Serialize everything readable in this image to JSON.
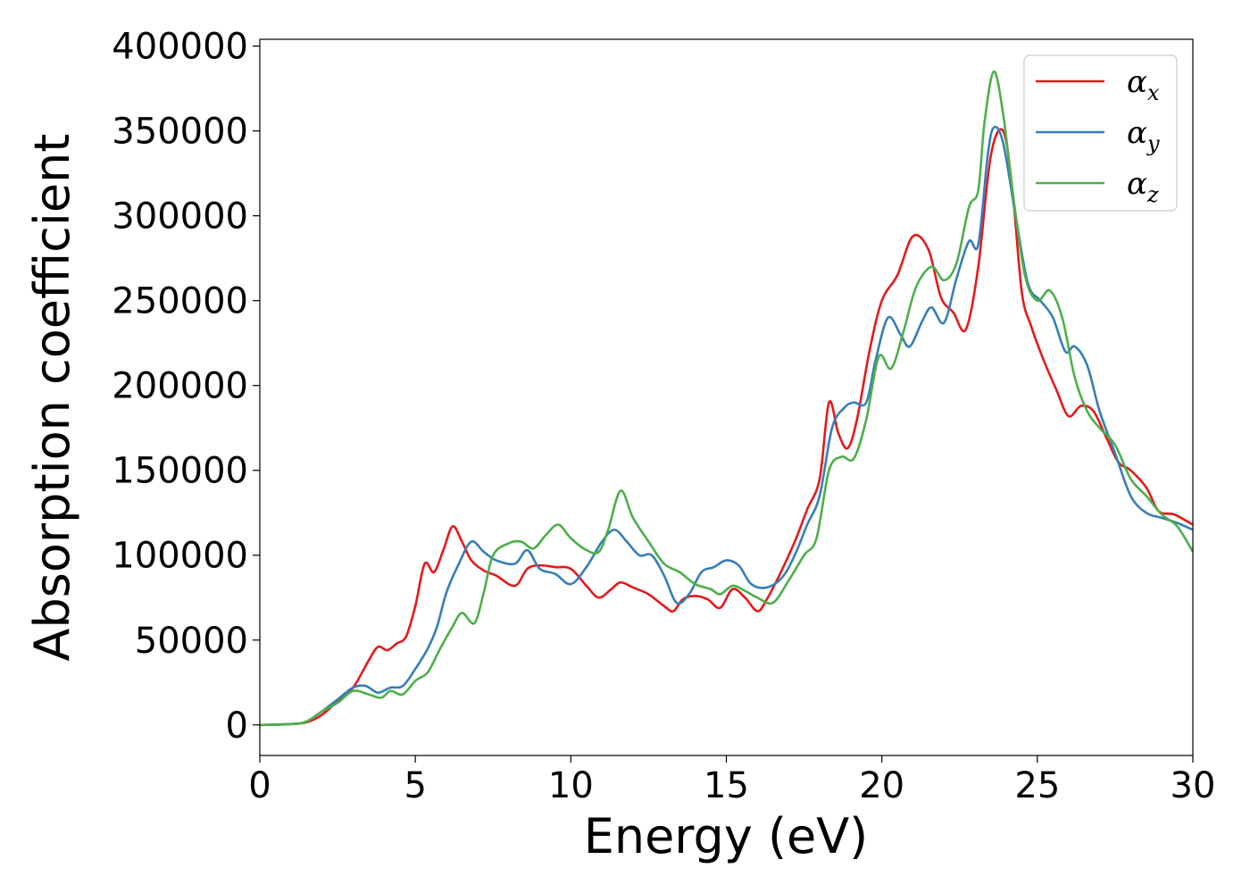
{
  "chart_data": {
    "type": "line",
    "title": "",
    "xlabel": "Energy (eV)",
    "ylabel": "Absorption coefficient",
    "xlim": [
      0,
      30
    ],
    "ylim": [
      -18000,
      404000
    ],
    "xticks": [
      0,
      5,
      10,
      15,
      20,
      25,
      30
    ],
    "xtick_labels": [
      "0",
      "5",
      "10",
      "15",
      "20",
      "25",
      "30"
    ],
    "yticks": [
      0,
      50000,
      100000,
      150000,
      200000,
      250000,
      300000,
      350000,
      400000
    ],
    "ytick_labels": [
      "0",
      "50000",
      "100000",
      "150000",
      "200000",
      "250000",
      "300000",
      "350000",
      "400000"
    ],
    "grid": false,
    "legend_position": "top-right",
    "series": [
      {
        "name": "α",
        "subscript": "x",
        "color": "#e41a1c",
        "points": [
          [
            0,
            0
          ],
          [
            1,
            500
          ],
          [
            1.5,
            1500
          ],
          [
            2,
            6000
          ],
          [
            2.5,
            14000
          ],
          [
            3,
            22000
          ],
          [
            3.5,
            38000
          ],
          [
            3.8,
            46000
          ],
          [
            4.1,
            44000
          ],
          [
            4.4,
            48000
          ],
          [
            4.7,
            52000
          ],
          [
            5.0,
            70000
          ],
          [
            5.3,
            95000
          ],
          [
            5.6,
            90000
          ],
          [
            5.9,
            103000
          ],
          [
            6.2,
            117000
          ],
          [
            6.5,
            108000
          ],
          [
            6.8,
            97000
          ],
          [
            7.2,
            91000
          ],
          [
            7.6,
            88000
          ],
          [
            8.2,
            82000
          ],
          [
            8.6,
            92000
          ],
          [
            9,
            94000
          ],
          [
            9.5,
            93000
          ],
          [
            10,
            92000
          ],
          [
            10.5,
            82000
          ],
          [
            10.9,
            75000
          ],
          [
            11.3,
            80000
          ],
          [
            11.6,
            84000
          ],
          [
            12,
            81000
          ],
          [
            12.5,
            77000
          ],
          [
            13,
            70000
          ],
          [
            13.3,
            67000
          ],
          [
            13.6,
            74000
          ],
          [
            14,
            76000
          ],
          [
            14.4,
            74000
          ],
          [
            14.8,
            69000
          ],
          [
            15.2,
            80000
          ],
          [
            15.6,
            75000
          ],
          [
            16,
            67000
          ],
          [
            16.3,
            74000
          ],
          [
            16.7,
            88000
          ],
          [
            17.2,
            108000
          ],
          [
            17.6,
            127000
          ],
          [
            18,
            145000
          ],
          [
            18.3,
            190000
          ],
          [
            18.6,
            172000
          ],
          [
            18.9,
            163000
          ],
          [
            19.2,
            180000
          ],
          [
            19.6,
            220000
          ],
          [
            20,
            250000
          ],
          [
            20.5,
            265000
          ],
          [
            21,
            288000
          ],
          [
            21.5,
            280000
          ],
          [
            21.9,
            252000
          ],
          [
            22.3,
            243000
          ],
          [
            22.7,
            233000
          ],
          [
            23.1,
            270000
          ],
          [
            23.5,
            335000
          ],
          [
            23.9,
            350000
          ],
          [
            24.2,
            315000
          ],
          [
            24.5,
            255000
          ],
          [
            24.8,
            235000
          ],
          [
            25.2,
            215000
          ],
          [
            25.6,
            198000
          ],
          [
            26,
            182000
          ],
          [
            26.4,
            188000
          ],
          [
            26.8,
            185000
          ],
          [
            27.2,
            170000
          ],
          [
            27.6,
            155000
          ],
          [
            28,
            150000
          ],
          [
            28.5,
            140000
          ],
          [
            28.9,
            126000
          ],
          [
            29.4,
            124000
          ],
          [
            30,
            118000
          ]
        ]
      },
      {
        "name": "α",
        "subscript": "y",
        "color": "#377eb8",
        "points": [
          [
            0,
            0
          ],
          [
            1,
            500
          ],
          [
            1.5,
            2000
          ],
          [
            2,
            8000
          ],
          [
            2.5,
            15000
          ],
          [
            3,
            22000
          ],
          [
            3.4,
            23000
          ],
          [
            3.8,
            19000
          ],
          [
            4.2,
            22000
          ],
          [
            4.6,
            23000
          ],
          [
            5.0,
            33000
          ],
          [
            5.4,
            45000
          ],
          [
            5.7,
            58000
          ],
          [
            6.0,
            78000
          ],
          [
            6.4,
            95000
          ],
          [
            6.8,
            108000
          ],
          [
            7.2,
            102000
          ],
          [
            7.6,
            97000
          ],
          [
            8.2,
            95000
          ],
          [
            8.6,
            103000
          ],
          [
            9,
            92000
          ],
          [
            9.5,
            89000
          ],
          [
            10,
            83000
          ],
          [
            10.5,
            93000
          ],
          [
            11,
            108000
          ],
          [
            11.4,
            115000
          ],
          [
            11.8,
            108000
          ],
          [
            12.2,
            100000
          ],
          [
            12.6,
            100000
          ],
          [
            13,
            88000
          ],
          [
            13.4,
            72000
          ],
          [
            13.8,
            77000
          ],
          [
            14.2,
            90000
          ],
          [
            14.6,
            93000
          ],
          [
            15,
            97000
          ],
          [
            15.4,
            94000
          ],
          [
            15.8,
            83000
          ],
          [
            16.3,
            81000
          ],
          [
            16.8,
            87000
          ],
          [
            17.2,
            100000
          ],
          [
            17.6,
            118000
          ],
          [
            18,
            135000
          ],
          [
            18.4,
            175000
          ],
          [
            18.8,
            187000
          ],
          [
            19.1,
            190000
          ],
          [
            19.5,
            190000
          ],
          [
            19.8,
            215000
          ],
          [
            20.2,
            240000
          ],
          [
            20.6,
            230000
          ],
          [
            20.9,
            223000
          ],
          [
            21.3,
            238000
          ],
          [
            21.6,
            246000
          ],
          [
            22,
            237000
          ],
          [
            22.4,
            263000
          ],
          [
            22.8,
            285000
          ],
          [
            23.1,
            283000
          ],
          [
            23.4,
            335000
          ],
          [
            23.6,
            352000
          ],
          [
            23.9,
            343000
          ],
          [
            24.3,
            300000
          ],
          [
            24.7,
            260000
          ],
          [
            25.1,
            250000
          ],
          [
            25.5,
            240000
          ],
          [
            25.9,
            220000
          ],
          [
            26.2,
            223000
          ],
          [
            26.6,
            212000
          ],
          [
            27,
            185000
          ],
          [
            27.5,
            160000
          ],
          [
            28,
            135000
          ],
          [
            28.5,
            125000
          ],
          [
            29,
            122000
          ],
          [
            29.5,
            119000
          ],
          [
            30,
            115000
          ]
        ]
      },
      {
        "name": "α",
        "subscript": "z",
        "color": "#4daf4a",
        "points": [
          [
            0,
            0
          ],
          [
            1,
            500
          ],
          [
            1.5,
            2000
          ],
          [
            2,
            8000
          ],
          [
            2.5,
            13000
          ],
          [
            3,
            20000
          ],
          [
            3.5,
            18000
          ],
          [
            3.9,
            16000
          ],
          [
            4.2,
            20000
          ],
          [
            4.6,
            18000
          ],
          [
            5.0,
            26000
          ],
          [
            5.4,
            31000
          ],
          [
            5.8,
            45000
          ],
          [
            6.2,
            58000
          ],
          [
            6.5,
            66000
          ],
          [
            6.9,
            60000
          ],
          [
            7.2,
            78000
          ],
          [
            7.5,
            100000
          ],
          [
            8,
            107000
          ],
          [
            8.4,
            108000
          ],
          [
            8.8,
            104000
          ],
          [
            9.2,
            112000
          ],
          [
            9.6,
            118000
          ],
          [
            10,
            110000
          ],
          [
            10.5,
            103000
          ],
          [
            10.9,
            102000
          ],
          [
            11.2,
            115000
          ],
          [
            11.6,
            138000
          ],
          [
            12,
            122000
          ],
          [
            12.5,
            108000
          ],
          [
            13,
            95000
          ],
          [
            13.5,
            90000
          ],
          [
            14,
            83000
          ],
          [
            14.5,
            80000
          ],
          [
            14.8,
            77000
          ],
          [
            15.2,
            82000
          ],
          [
            15.6,
            79000
          ],
          [
            16,
            75000
          ],
          [
            16.5,
            72000
          ],
          [
            17,
            85000
          ],
          [
            17.5,
            100000
          ],
          [
            17.9,
            110000
          ],
          [
            18.3,
            150000
          ],
          [
            18.7,
            158000
          ],
          [
            19.1,
            157000
          ],
          [
            19.5,
            180000
          ],
          [
            19.9,
            217000
          ],
          [
            20.3,
            210000
          ],
          [
            20.7,
            232000
          ],
          [
            21.1,
            258000
          ],
          [
            21.6,
            270000
          ],
          [
            22,
            262000
          ],
          [
            22.4,
            272000
          ],
          [
            22.8,
            305000
          ],
          [
            23.1,
            315000
          ],
          [
            23.3,
            355000
          ],
          [
            23.6,
            385000
          ],
          [
            23.9,
            360000
          ],
          [
            24.2,
            315000
          ],
          [
            24.6,
            265000
          ],
          [
            25,
            250000
          ],
          [
            25.4,
            256000
          ],
          [
            25.8,
            240000
          ],
          [
            26.2,
            205000
          ],
          [
            26.6,
            185000
          ],
          [
            27,
            175000
          ],
          [
            27.5,
            165000
          ],
          [
            28,
            145000
          ],
          [
            28.5,
            135000
          ],
          [
            29,
            124000
          ],
          [
            29.5,
            117000
          ],
          [
            30,
            102000
          ]
        ]
      }
    ]
  }
}
